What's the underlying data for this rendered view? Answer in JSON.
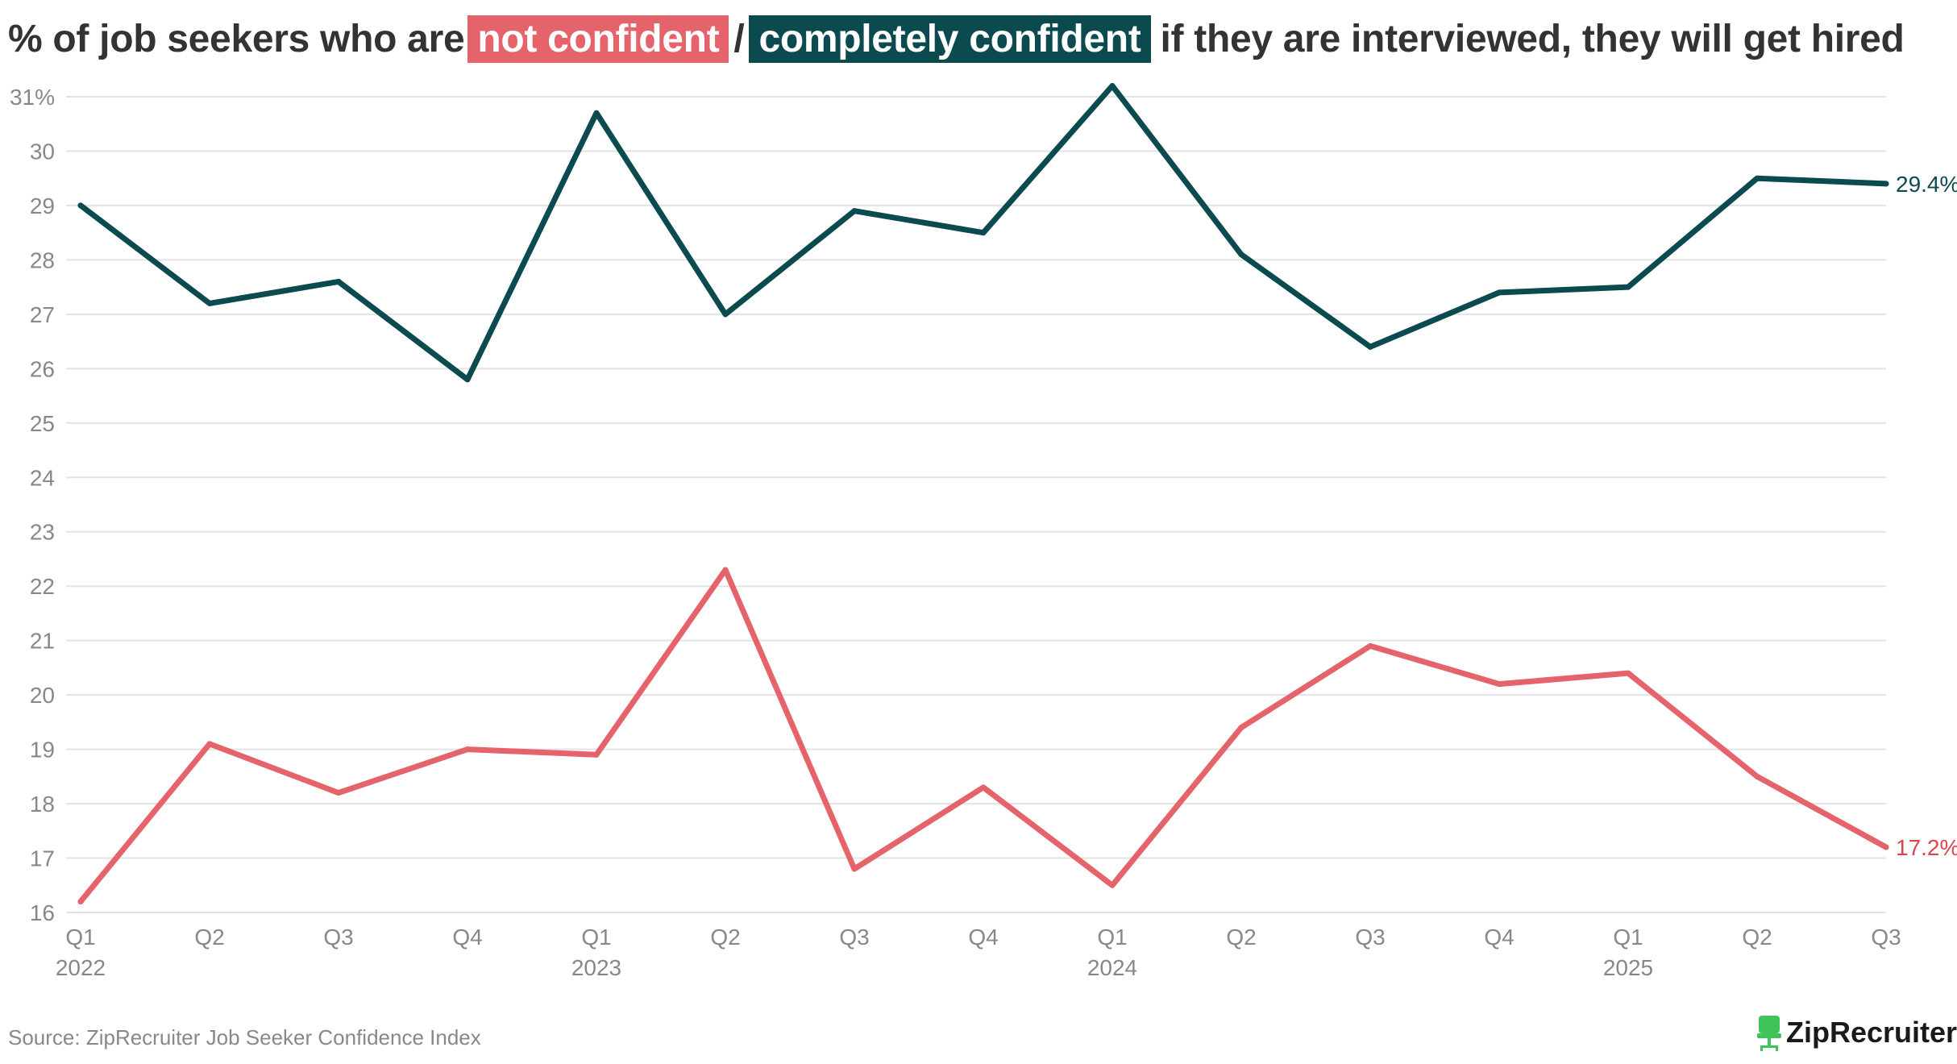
{
  "title": {
    "prefix": "% of job seekers who are",
    "highlight_red": "not confident",
    "separator": "/",
    "highlight_dark": "completely confident",
    "suffix": "if they are interviewed, they will get hired"
  },
  "source": "Source: ZipRecruiter Job Seeker Confidence Index",
  "brand": {
    "name": "ZipRecruiter",
    "icon": "chair-icon"
  },
  "colors": {
    "not_confident": "#e5636a",
    "completely_confident": "#0b4a4f"
  },
  "chart_data": {
    "type": "line",
    "title": "% of job seekers who are not confident / completely confident if they are interviewed, they will get hired",
    "x": [
      "Q1",
      "Q2",
      "Q3",
      "Q4",
      "Q1",
      "Q2",
      "Q3",
      "Q4",
      "Q1",
      "Q2",
      "Q3",
      "Q4",
      "Q1",
      "Q2",
      "Q3"
    ],
    "x_years": [
      "2022",
      "",
      "",
      "",
      "2023",
      "",
      "",
      "",
      "2024",
      "",
      "",
      "",
      "2025",
      "",
      ""
    ],
    "series": [
      {
        "name": "completely confident",
        "color": "#0b4a4f",
        "values": [
          29.0,
          27.2,
          27.6,
          25.8,
          30.7,
          27.0,
          28.9,
          28.5,
          31.2,
          28.1,
          26.4,
          27.4,
          27.5,
          29.5,
          29.4
        ],
        "end_label": "29.4%"
      },
      {
        "name": "not confident",
        "color": "#e5636a",
        "values": [
          16.2,
          19.1,
          18.2,
          19.0,
          18.9,
          22.3,
          16.8,
          18.3,
          16.5,
          19.4,
          20.9,
          20.2,
          20.4,
          18.5,
          17.2
        ],
        "end_label": "17.2%"
      }
    ],
    "ylim": [
      16,
      31
    ],
    "yticks": [
      "16",
      "17",
      "18",
      "19",
      "20",
      "21",
      "22",
      "23",
      "24",
      "25",
      "26",
      "27",
      "28",
      "29",
      "30",
      "31%"
    ],
    "grid": true,
    "legend": "in title"
  }
}
